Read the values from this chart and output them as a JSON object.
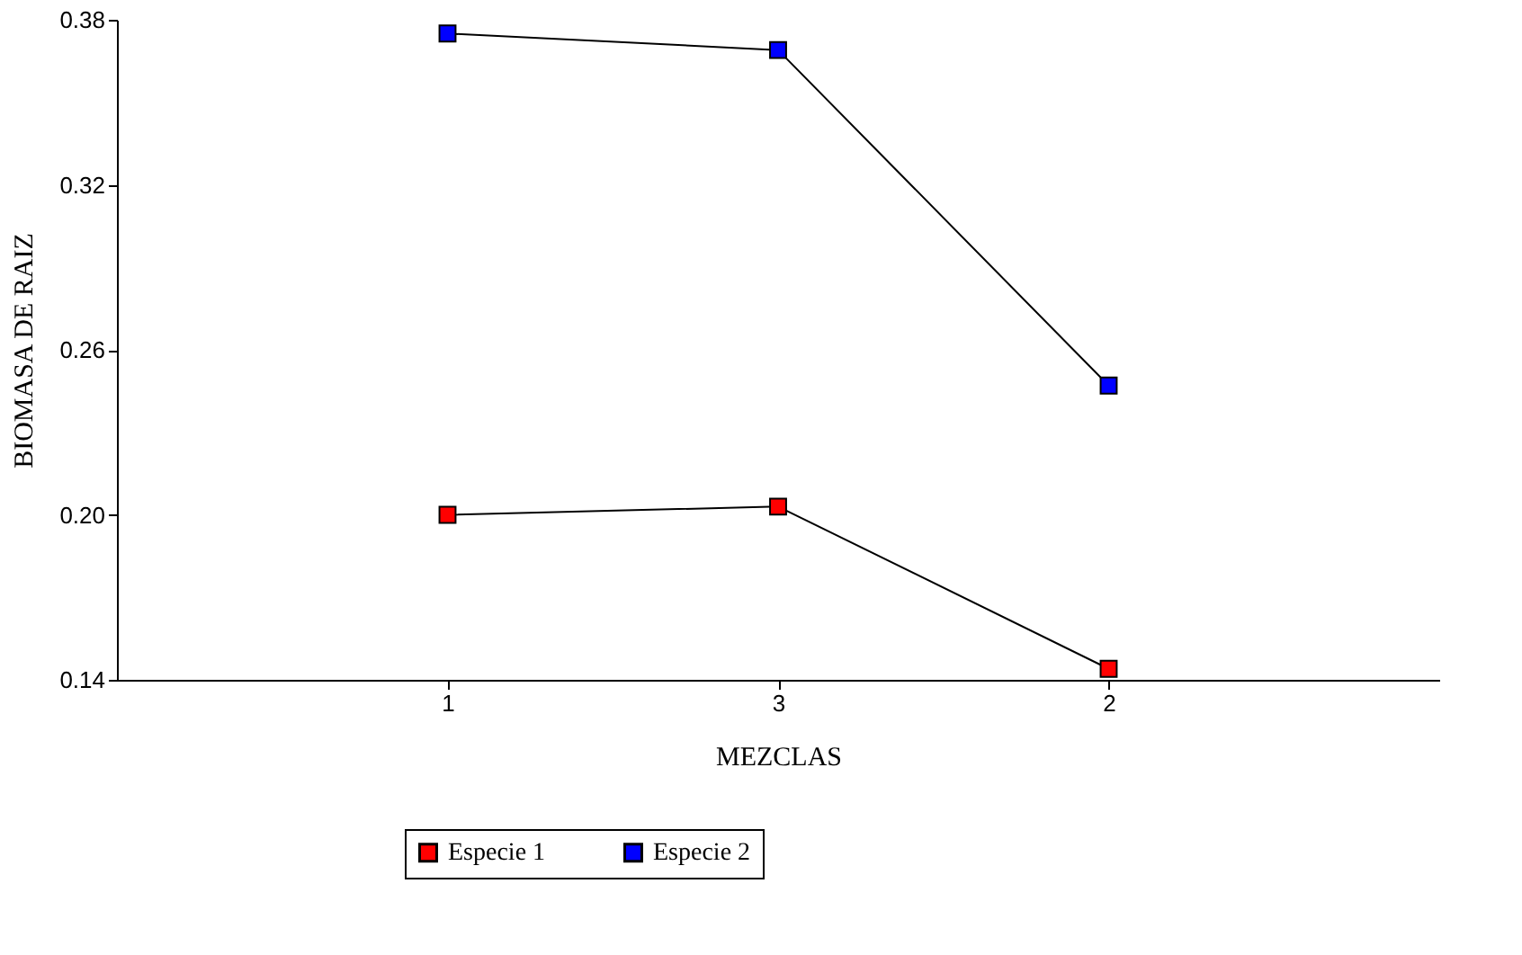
{
  "chart_data": {
    "type": "line",
    "xlabel": "MEZCLAS",
    "ylabel": "BIOMASA DE RAIZ",
    "categories": [
      "1",
      "3",
      "2"
    ],
    "series": [
      {
        "name": "Especie 1",
        "color": "#ff0000",
        "values": [
          0.2,
          0.203,
          0.144
        ]
      },
      {
        "name": "Especie 2",
        "color": "#0000ff",
        "values": [
          0.375,
          0.369,
          0.247
        ]
      }
    ],
    "ylim": [
      0.14,
      0.38
    ],
    "yticks": [
      {
        "value": 0.14,
        "label": "0.14"
      },
      {
        "value": 0.2,
        "label": "0.20"
      },
      {
        "value": 0.26,
        "label": "0.26"
      },
      {
        "value": 0.32,
        "label": "0.32"
      },
      {
        "value": 0.38,
        "label": "0.38"
      }
    ],
    "grid": false,
    "legend": "bottom",
    "marker": "square",
    "line_style": "solid"
  }
}
